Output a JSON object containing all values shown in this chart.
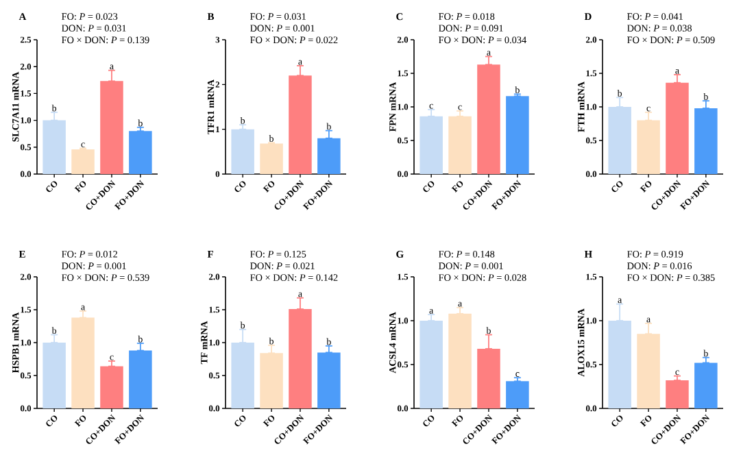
{
  "chart_data": [
    {
      "type": "bar",
      "title": "A",
      "ylabel": "SLC7A11 mRNA",
      "categories": [
        "CO",
        "FO",
        "CO+DON",
        "FO+DON"
      ],
      "values": [
        1.0,
        0.46,
        1.73,
        0.8
      ],
      "colors": [
        "#c6dcf5",
        "#fde0c0",
        "#fe7f80",
        "#4d9cf9"
      ],
      "errors": [
        [
          1.0,
          1.15
        ],
        [
          0.46,
          0.48
        ],
        [
          1.73,
          1.93
        ],
        [
          0.8,
          0.87
        ]
      ],
      "ylim": [
        0,
        2.5
      ],
      "yticks": [
        {
          "value": 0,
          "label": "0.0"
        },
        0.5,
        {
          "value": 1,
          "label": "1.0"
        },
        1.5,
        {
          "value": 2,
          "label": "2.0"
        },
        2.5
      ],
      "annotations": [
        "FO: *P* = 0.023",
        "DON: *P* = 0.031",
        "FO × DON: *P* = 0.139",
        {
          "text": "b",
          "x": "CO",
          "y": 1.15
        },
        {
          "text": "c",
          "x": "FO",
          "y": 0.48
        },
        {
          "text": "a",
          "x": "CO+DON",
          "y": 1.93
        },
        {
          "text": "b",
          "x": "FO+DON",
          "y": 0.87
        }
      ]
    },
    {
      "type": "bar",
      "title": "B",
      "ylabel": "TFR1 mRNA",
      "categories": [
        "CO",
        "FO",
        "CO+DON",
        "FO+DON"
      ],
      "values": [
        1.0,
        0.68,
        2.2,
        0.8
      ],
      "colors": [
        "#c6dcf5",
        "#fde0c0",
        "#fe7f80",
        "#4d9cf9"
      ],
      "errors": [
        [
          1.0,
          1.1
        ],
        [
          0.68,
          0.7
        ],
        [
          2.2,
          2.42
        ],
        [
          0.8,
          0.97
        ]
      ],
      "ylim": [
        0,
        3
      ],
      "yticks": [
        0,
        1,
        2,
        3
      ],
      "annotations": [
        "FO: *P* = 0.031",
        "DON: *P* = 0.001",
        "FO × DON: *P* = 0.022",
        {
          "text": "b",
          "x": "CO",
          "y": 1.1
        },
        {
          "text": "b",
          "x": "FO",
          "y": 0.7
        },
        {
          "text": "a",
          "x": "CO+DON",
          "y": 2.42
        },
        {
          "text": "b",
          "x": "FO+DON",
          "y": 0.97
        }
      ]
    },
    {
      "type": "bar",
      "title": "C",
      "ylabel": "FPN mRNA",
      "categories": [
        "CO",
        "FO",
        "CO+DON",
        "FO+DON"
      ],
      "values": [
        0.86,
        0.86,
        1.63,
        1.16
      ],
      "colors": [
        "#c6dcf5",
        "#fde0c0",
        "#fe7f80",
        "#4d9cf9"
      ],
      "errors": [
        [
          0.86,
          0.96
        ],
        [
          0.86,
          0.94
        ],
        [
          1.63,
          1.75
        ],
        [
          1.16,
          1.19
        ]
      ],
      "ylim": [
        0,
        2
      ],
      "yticks": [
        {
          "value": 0,
          "label": "0.0"
        },
        0.5,
        {
          "value": 1,
          "label": "1.0"
        },
        1.5,
        {
          "value": 2,
          "label": "2.0"
        }
      ],
      "annotations": [
        "FO: *P* = 0.018",
        "DON: *P* = 0.091",
        "FO × DON: *P* = 0.034",
        {
          "text": "c",
          "x": "CO",
          "y": 0.96
        },
        {
          "text": "c",
          "x": "FO",
          "y": 0.94
        },
        {
          "text": "a",
          "x": "CO+DON",
          "y": 1.75
        },
        {
          "text": "b",
          "x": "FO+DON",
          "y": 1.19
        }
      ]
    },
    {
      "type": "bar",
      "title": "D",
      "ylabel": "FTH mRNA",
      "categories": [
        "CO",
        "FO",
        "CO+DON",
        "FO+DON"
      ],
      "values": [
        1.0,
        0.8,
        1.36,
        0.98
      ],
      "colors": [
        "#c6dcf5",
        "#fde0c0",
        "#fe7f80",
        "#4d9cf9"
      ],
      "errors": [
        [
          1.0,
          1.14
        ],
        [
          0.8,
          0.92
        ],
        [
          1.36,
          1.48
        ],
        [
          0.98,
          1.09
        ]
      ],
      "ylim": [
        0,
        2
      ],
      "yticks": [
        {
          "value": 0,
          "label": "0.0"
        },
        0.5,
        {
          "value": 1,
          "label": "1.0"
        },
        1.5,
        {
          "value": 2,
          "label": "2.0"
        }
      ],
      "annotations": [
        "FO: *P* = 0.041",
        "DON: *P* = 0.038",
        "FO × DON: *P* = 0.509",
        {
          "text": "b",
          "x": "CO",
          "y": 1.14
        },
        {
          "text": "c",
          "x": "FO",
          "y": 0.92
        },
        {
          "text": "a",
          "x": "CO+DON",
          "y": 1.48
        },
        {
          "text": "b",
          "x": "FO+DON",
          "y": 1.09
        }
      ]
    },
    {
      "type": "bar",
      "title": "E",
      "ylabel": "HSPB1 mRNA",
      "categories": [
        "CO",
        "FO",
        "CO+DON",
        "FO+DON"
      ],
      "values": [
        1.0,
        1.38,
        0.64,
        0.88
      ],
      "colors": [
        "#c6dcf5",
        "#fde0c0",
        "#fe7f80",
        "#4d9cf9"
      ],
      "errors": [
        [
          1.0,
          1.12
        ],
        [
          1.38,
          1.48
        ],
        [
          0.64,
          0.72
        ],
        [
          0.88,
          0.99
        ]
      ],
      "ylim": [
        0,
        2
      ],
      "yticks": [
        {
          "value": 0,
          "label": "0.0"
        },
        0.5,
        {
          "value": 1,
          "label": "1.0"
        },
        1.5,
        {
          "value": 2,
          "label": "2.0"
        }
      ],
      "annotations": [
        "FO: *P* = 0.012",
        "DON: *P* = 0.001",
        "FO × DON: *P* = 0.539",
        {
          "text": "b",
          "x": "CO",
          "y": 1.12
        },
        {
          "text": "a",
          "x": "FO",
          "y": 1.48
        },
        {
          "text": "c",
          "x": "CO+DON",
          "y": 0.72
        },
        {
          "text": "b",
          "x": "FO+DON",
          "y": 0.99
        }
      ]
    },
    {
      "type": "bar",
      "title": "F",
      "ylabel": "TF mRNA",
      "categories": [
        "CO",
        "FO",
        "CO+DON",
        "FO+DON"
      ],
      "values": [
        1.0,
        0.84,
        1.51,
        0.85
      ],
      "colors": [
        "#c6dcf5",
        "#fde0c0",
        "#fe7f80",
        "#4d9cf9"
      ],
      "errors": [
        [
          1.0,
          1.2
        ],
        [
          0.84,
          0.96
        ],
        [
          1.51,
          1.68
        ],
        [
          0.85,
          0.95
        ]
      ],
      "ylim": [
        0,
        2
      ],
      "yticks": [
        {
          "value": 0,
          "label": "0.0"
        },
        0.5,
        {
          "value": 1,
          "label": "1.0"
        },
        1.5,
        {
          "value": 2,
          "label": "2.0"
        }
      ],
      "annotations": [
        "FO: *P* = 0.125",
        "DON: *P* = 0.021",
        "FO × DON: *P* = 0.142",
        {
          "text": "b",
          "x": "CO",
          "y": 1.2
        },
        {
          "text": "b",
          "x": "FO",
          "y": 0.96
        },
        {
          "text": "a",
          "x": "CO+DON",
          "y": 1.68
        },
        {
          "text": "b",
          "x": "FO+DON",
          "y": 0.95
        }
      ]
    },
    {
      "type": "bar",
      "title": "G",
      "ylabel": "ACSL4 mRNA",
      "categories": [
        "CO",
        "FO",
        "CO+DON",
        "FO+DON"
      ],
      "values": [
        1.0,
        1.08,
        0.68,
        0.31
      ],
      "colors": [
        "#c6dcf5",
        "#fde0c0",
        "#fe7f80",
        "#4d9cf9"
      ],
      "errors": [
        [
          1.0,
          1.07
        ],
        [
          1.08,
          1.15
        ],
        [
          0.68,
          0.84
        ],
        [
          0.31,
          0.35
        ]
      ],
      "ylim": [
        0,
        1.5
      ],
      "yticks": [
        {
          "value": 0,
          "label": "0.0"
        },
        0.5,
        {
          "value": 1,
          "label": "1.0"
        },
        1.5
      ],
      "annotations": [
        "FO: *P* = 0.148",
        "DON: *P* = 0.001",
        "FO × DON: *P* = 0.028",
        {
          "text": "a",
          "x": "CO",
          "y": 1.07
        },
        {
          "text": "a",
          "x": "FO",
          "y": 1.15
        },
        {
          "text": "b",
          "x": "CO+DON",
          "y": 0.84
        },
        {
          "text": "c",
          "x": "FO+DON",
          "y": 0.35
        }
      ]
    },
    {
      "type": "bar",
      "title": "H",
      "ylabel": "ALOX15 mRNA",
      "categories": [
        "CO",
        "FO",
        "CO+DON",
        "FO+DON"
      ],
      "values": [
        1.0,
        0.85,
        0.32,
        0.52
      ],
      "colors": [
        "#c6dcf5",
        "#fde0c0",
        "#fe7f80",
        "#4d9cf9"
      ],
      "errors": [
        [
          1.0,
          1.19
        ],
        [
          0.85,
          0.97
        ],
        [
          0.32,
          0.37
        ],
        [
          0.52,
          0.58
        ]
      ],
      "ylim": [
        0,
        1.5
      ],
      "yticks": [
        {
          "value": 0,
          "label": "0.0"
        },
        0.5,
        {
          "value": 1,
          "label": "1.0"
        },
        1.5
      ],
      "annotations": [
        "FO: *P* = 0.919",
        "DON: *P* = 0.016",
        "FO × DON: *P* = 0.385",
        {
          "text": "a",
          "x": "CO",
          "y": 1.19
        },
        {
          "text": "a",
          "x": "FO",
          "y": 0.97
        },
        {
          "text": "c",
          "x": "CO+DON",
          "y": 0.37
        },
        {
          "text": "b",
          "x": "FO+DON",
          "y": 0.58
        }
      ]
    }
  ]
}
